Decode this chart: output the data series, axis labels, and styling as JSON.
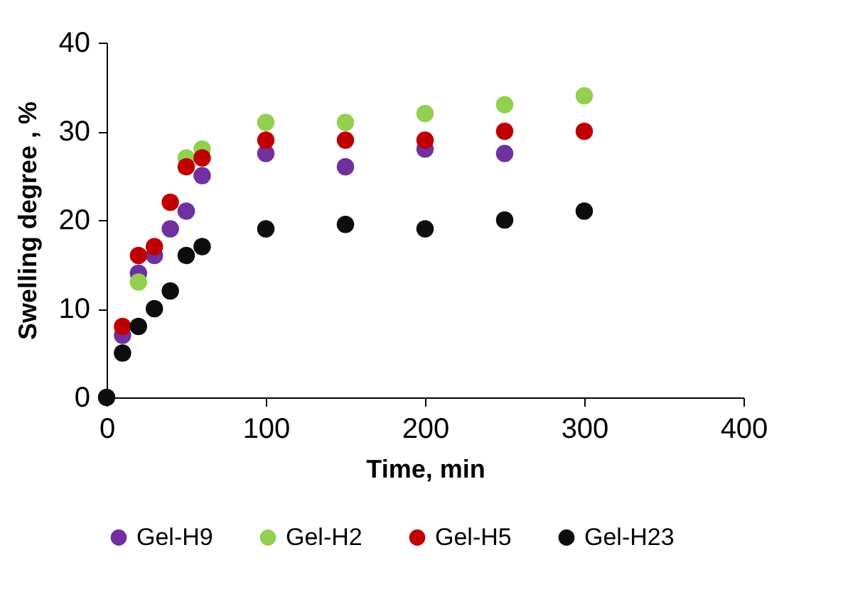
{
  "chart_data": {
    "type": "scatter",
    "xlabel": "Time, min",
    "ylabel": "Swelling degree , %",
    "x": [
      0,
      10,
      20,
      30,
      40,
      50,
      60,
      100,
      150,
      200,
      250,
      300
    ],
    "series": [
      {
        "name": "Gel-H9",
        "color": "#7030a0",
        "values": [
          null,
          7,
          14,
          16,
          19,
          21,
          25,
          27.5,
          26,
          28,
          27.5,
          null
        ]
      },
      {
        "name": "Gel-H2",
        "color": "#92d050",
        "values": [
          null,
          null,
          13,
          null,
          null,
          27,
          28,
          31,
          31,
          32,
          33,
          34
        ]
      },
      {
        "name": "Gel-H5",
        "color": "#c00000",
        "values": [
          null,
          8,
          16,
          17,
          22,
          26,
          27,
          29,
          29,
          29,
          30,
          30
        ]
      },
      {
        "name": "Gel-H23",
        "color": "#0d0d0d",
        "values": [
          0,
          5,
          8,
          10,
          12,
          16,
          17,
          19,
          19.5,
          19,
          20,
          21
        ]
      }
    ],
    "xlim": [
      0,
      400
    ],
    "xticks": [
      0,
      100,
      200,
      300,
      400
    ],
    "ylim": [
      0,
      40
    ],
    "yticks": [
      0,
      10,
      20,
      30,
      40
    ],
    "grid": false,
    "legend": "bottom",
    "marker": "circle"
  }
}
